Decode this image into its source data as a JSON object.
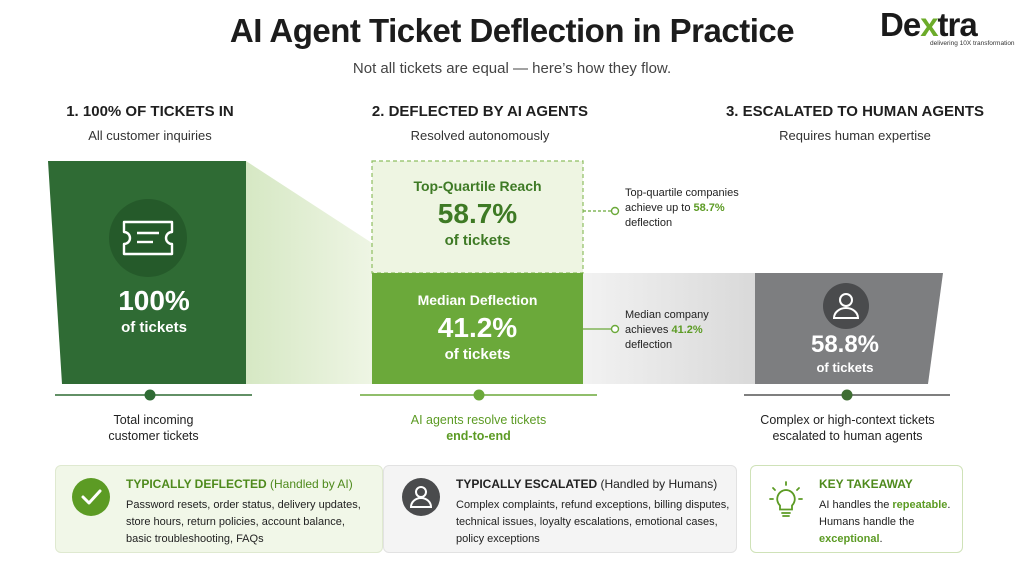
{
  "header": {
    "title": "AI Agent Ticket Deflection in Practice",
    "subtitle": "Not all tickets are equal — here’s how they flow.",
    "logo_text": "Dextra",
    "logo_tagline": "delivering 10X transformation"
  },
  "stages": [
    {
      "heading": "1. 100% OF TICKETS IN",
      "subheading": "All customer inquiries",
      "value": "100%",
      "value_label": "of tickets",
      "footer_line1": "Total incoming",
      "footer_line2": "customer tickets",
      "icon": "ticket-icon"
    },
    {
      "heading": "2. DEFLECTED BY AI AGENTS",
      "subheading": "Resolved autonomously",
      "top_box": {
        "title": "Top-Quartile Reach",
        "value": "58.7%",
        "value_label": "of tickets"
      },
      "bottom_box": {
        "title": "Median Deflection",
        "value": "41.2%",
        "value_label": "of tickets"
      },
      "footer_line1": "AI agents resolve tickets",
      "footer_line2": "end-to-end"
    },
    {
      "heading": "3. ESCALATED TO HUMAN AGENTS",
      "subheading": "Requires human expertise",
      "value": "58.8%",
      "value_label": "of tickets",
      "footer_line1": "Complex or high-context tickets",
      "footer_line2": "escalated to human agents",
      "icon": "person-icon"
    }
  ],
  "callouts": {
    "top": {
      "line1": "Top-quartile companies",
      "line2_prefix": "achieve up to ",
      "line2_value": "58.7%",
      "line3": "deflection"
    },
    "median": {
      "line1": "Median company",
      "line2_prefix": "achieves ",
      "line2_value": "41.2%",
      "line3": "deflection"
    }
  },
  "panels": {
    "deflected": {
      "title_bold": "TYPICALLY DEFLECTED",
      "title_rest": " (Handled by AI)",
      "lines": [
        "Password resets, order status, delivery updates,",
        "store hours, return policies, account balance,",
        "basic troubleshooting, FAQs"
      ],
      "icon": "check-icon"
    },
    "escalated": {
      "title_bold": "TYPICALLY ESCALATED",
      "title_rest": " (Handled by Humans)",
      "lines": [
        "Complex complaints, refund exceptions, billing disputes,",
        "technical issues, loyalty escalations, emotional cases,",
        "policy exceptions"
      ],
      "icon": "person-icon"
    },
    "takeaway": {
      "title": "KEY TAKEAWAY",
      "line1_prefix": "AI handles the ",
      "line1_emph": "repeatable",
      "line1_suffix": ".",
      "line2": "Humans handle the",
      "line3_emph": "exceptional",
      "line3_suffix": ".",
      "icon": "lightbulb-icon"
    }
  },
  "colors": {
    "dark_green": "#2f6b34",
    "bright_green": "#6ba93a",
    "pale_green": "#eef5e2",
    "accent_green": "#5c9b24",
    "gray": "#7d7e80",
    "text": "#222222"
  }
}
